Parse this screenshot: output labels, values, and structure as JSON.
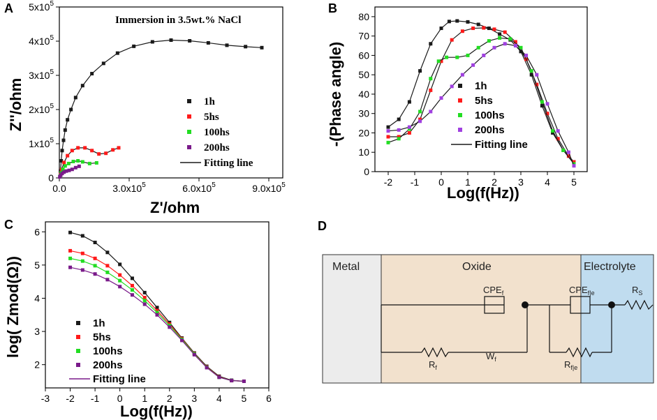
{
  "chart_data": [
    {
      "panel": "A",
      "type": "scatter",
      "title": "Immersion in 3.5wt.% NaCl",
      "xlabel": "Z'/ohm",
      "ylabel": "Z''/ohm",
      "xlim": [
        0,
        960000
      ],
      "ylim": [
        0,
        500000
      ],
      "xticks": [
        "0.0",
        "3.0x10^5",
        "6.0x10^5",
        "9.0x10^5"
      ],
      "yticks": [
        "0",
        "1x10^5",
        "2x10^5",
        "3x10^5",
        "4x10^5",
        "5x10^5"
      ],
      "series": [
        {
          "name": "1h",
          "color": "#1a1a1a",
          "marker": "square",
          "x": [
            5000,
            8000,
            12000,
            18000,
            25000,
            35000,
            50000,
            70000,
            100000,
            140000,
            190000,
            250000,
            320000,
            400000,
            480000,
            560000,
            640000,
            720000,
            800000,
            870000
          ],
          "y": [
            20000,
            50000,
            80000,
            110000,
            140000,
            170000,
            200000,
            235000,
            270000,
            305000,
            335000,
            365000,
            385000,
            398000,
            403000,
            401000,
            395000,
            388000,
            384000,
            381000
          ]
        },
        {
          "name": "5hs",
          "color": "#ff1a1a",
          "marker": "square",
          "x": [
            5000,
            10000,
            20000,
            35000,
            55000,
            80000,
            110000,
            140000,
            170000,
            200000,
            230000,
            255000
          ],
          "y": [
            10000,
            25000,
            45000,
            65000,
            80000,
            88000,
            88000,
            80000,
            70000,
            72000,
            82000,
            88000
          ]
        },
        {
          "name": "100hs",
          "color": "#22dd22",
          "marker": "square",
          "x": [
            3000,
            8000,
            15000,
            25000,
            40000,
            60000,
            80000,
            100000,
            130000,
            160000
          ],
          "y": [
            5000,
            15000,
            25000,
            35000,
            42000,
            48000,
            50000,
            47000,
            42000,
            44000
          ]
        },
        {
          "name": "200hs",
          "color": "#7a1a8a",
          "marker": "square",
          "x": [
            2000,
            6000,
            12000,
            20000,
            30000,
            42000,
            55000,
            70000,
            85000
          ],
          "y": [
            3000,
            8000,
            13000,
            17000,
            20000,
            22000,
            25000,
            30000,
            34000
          ]
        }
      ],
      "fit_label": "Fitting line"
    },
    {
      "panel": "B",
      "type": "scatter",
      "xlabel": "Log(f(Hz))",
      "ylabel": "-(Phase angle)",
      "xlim": [
        -2.5,
        5.5
      ],
      "ylim": [
        0,
        85
      ],
      "xticks": [
        "-2",
        "-1",
        "0",
        "1",
        "2",
        "3",
        "4",
        "5"
      ],
      "yticks": [
        "0",
        "10",
        "20",
        "30",
        "40",
        "50",
        "60",
        "70",
        "80"
      ],
      "series": [
        {
          "name": "1h",
          "color": "#1a1a1a",
          "marker": "square",
          "x": [
            -2.0,
            -1.6,
            -1.2,
            -0.8,
            -0.4,
            0.0,
            0.3,
            0.6,
            1.0,
            1.4,
            1.8,
            2.2,
            2.6,
            3.0,
            3.4,
            3.8,
            4.2,
            4.6,
            5.0
          ],
          "y": [
            23,
            27,
            36,
            52,
            66,
            74,
            77.5,
            77.8,
            77.3,
            76,
            74,
            71,
            68,
            62,
            50,
            34,
            20,
            11,
            5
          ]
        },
        {
          "name": "5hs",
          "color": "#ff1a1a",
          "marker": "square",
          "x": [
            -2.0,
            -1.6,
            -1.2,
            -0.8,
            -0.4,
            0.0,
            0.4,
            0.8,
            1.2,
            1.6,
            2.0,
            2.4,
            2.8,
            3.2,
            3.6,
            4.0,
            4.4,
            4.8,
            5.0
          ],
          "y": [
            18,
            18,
            20,
            27,
            42,
            57,
            68,
            72.5,
            74,
            74.2,
            73.5,
            72,
            67,
            58,
            45,
            30,
            17,
            8,
            5
          ]
        },
        {
          "name": "100hs",
          "color": "#22dd22",
          "marker": "square",
          "x": [
            -2.0,
            -1.6,
            -1.2,
            -0.8,
            -0.4,
            -0.1,
            0.2,
            0.6,
            1.0,
            1.4,
            1.8,
            2.2,
            2.6,
            3.0,
            3.4,
            3.8,
            4.2,
            4.6,
            5.0
          ],
          "y": [
            15,
            17,
            22,
            31,
            48,
            57,
            59,
            59,
            60,
            64,
            67.5,
            69,
            68.5,
            64,
            52,
            36,
            21,
            11,
            4
          ]
        },
        {
          "name": "200hs",
          "color": "#a040e0",
          "marker": "square",
          "x": [
            -2.0,
            -1.6,
            -1.2,
            -0.8,
            -0.4,
            0.0,
            0.4,
            0.8,
            1.2,
            1.6,
            2.0,
            2.4,
            2.8,
            3.2,
            3.6,
            4.0,
            4.4,
            4.8,
            5.0
          ],
          "y": [
            21,
            21.5,
            23,
            26,
            31,
            38,
            44,
            50,
            55,
            60,
            64,
            66,
            65,
            60,
            50,
            35,
            21,
            10,
            3
          ]
        }
      ],
      "fit_label": "Fitting line"
    },
    {
      "panel": "C",
      "type": "scatter",
      "xlabel": "Log(f(Hz))",
      "ylabel": "log( Zmod(Ω))",
      "xlim": [
        -3,
        6
      ],
      "ylim": [
        1.3,
        6.3
      ],
      "xticks": [
        "-3",
        "-2",
        "-1",
        "0",
        "1",
        "2",
        "3",
        "4",
        "5",
        "6"
      ],
      "yticks": [
        "2",
        "3",
        "4",
        "5",
        "6"
      ],
      "series": [
        {
          "name": "1h",
          "color": "#1a1a1a",
          "marker": "square",
          "x": [
            -2.0,
            -1.5,
            -1.0,
            -0.5,
            0.0,
            0.5,
            1.0,
            1.5,
            2.0,
            2.5,
            3.0,
            3.5,
            4.0,
            4.5,
            5.0
          ],
          "y": [
            5.98,
            5.88,
            5.68,
            5.38,
            5.02,
            4.6,
            4.17,
            3.72,
            3.27,
            2.8,
            2.35,
            1.95,
            1.65,
            1.53,
            1.5
          ]
        },
        {
          "name": "5hs",
          "color": "#ff1a1a",
          "marker": "square",
          "x": [
            -2.0,
            -1.5,
            -1.0,
            -0.5,
            0.0,
            0.5,
            1.0,
            1.5,
            2.0,
            2.5,
            3.0,
            3.5,
            4.0,
            4.5,
            5.0
          ],
          "y": [
            5.43,
            5.35,
            5.2,
            4.98,
            4.7,
            4.38,
            4.02,
            3.63,
            3.22,
            2.78,
            2.33,
            1.93,
            1.63,
            1.52,
            1.5
          ]
        },
        {
          "name": "100hs",
          "color": "#22dd22",
          "marker": "square",
          "x": [
            -2.0,
            -1.5,
            -1.0,
            -0.5,
            0.0,
            0.5,
            1.0,
            1.5,
            2.0,
            2.5,
            3.0,
            3.5,
            4.0,
            4.5,
            5.0
          ],
          "y": [
            5.2,
            5.12,
            4.98,
            4.78,
            4.53,
            4.25,
            3.93,
            3.57,
            3.18,
            2.76,
            2.32,
            1.92,
            1.62,
            1.52,
            1.5
          ]
        },
        {
          "name": "200hs",
          "color": "#7a1a8a",
          "marker": "square",
          "x": [
            -2.0,
            -1.5,
            -1.0,
            -0.5,
            0.0,
            0.5,
            1.0,
            1.5,
            2.0,
            2.5,
            3.0,
            3.5,
            4.0,
            4.5,
            5.0
          ],
          "y": [
            4.93,
            4.85,
            4.73,
            4.56,
            4.35,
            4.1,
            3.82,
            3.5,
            3.13,
            2.73,
            2.3,
            1.91,
            1.62,
            1.52,
            1.5
          ]
        }
      ],
      "fit_label": "Fitting line"
    },
    {
      "panel": "D",
      "type": "diagram",
      "regions": [
        "Metal",
        "Oxide",
        "Electrolyte"
      ],
      "components": [
        "CPE",
        "f",
        "CPE",
        "f|e",
        "R",
        "S",
        "R",
        "f",
        "W",
        "f",
        "R",
        "f|e"
      ]
    }
  ],
  "panel_labels": [
    "A",
    "B",
    "C",
    "D"
  ],
  "colors": {
    "metal_bg": "#ececec",
    "oxide_bg": "#f2e1cd",
    "electrolyte_bg": "#c0dcef",
    "fit_line": "#1a1a1a",
    "fit_line_c": "#7a1a8a"
  }
}
